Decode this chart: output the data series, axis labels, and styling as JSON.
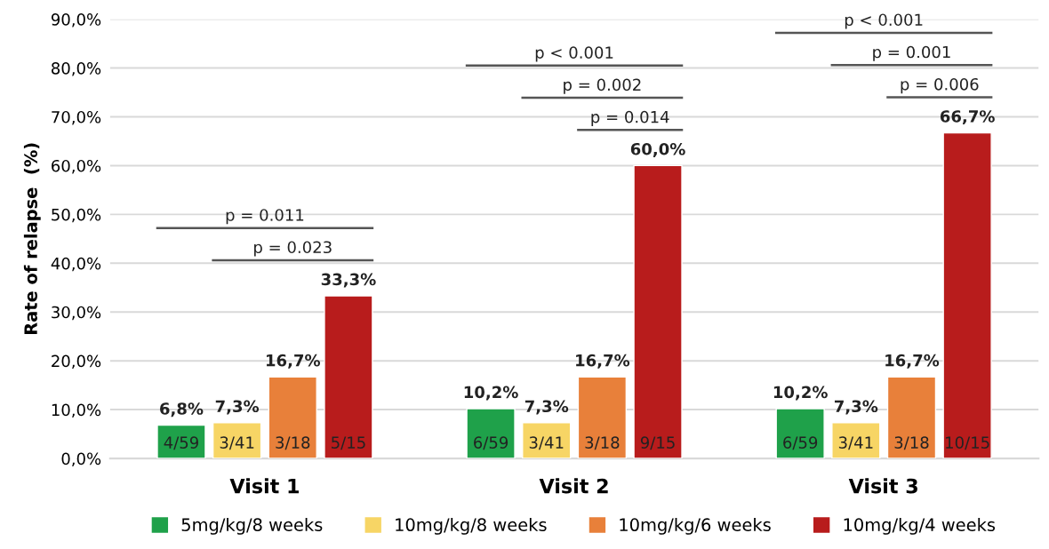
{
  "chart_data": {
    "type": "bar",
    "ylabel": "Rate of relapse  (%)",
    "categories": [
      "Visit 1",
      "Visit 2",
      "Visit 3"
    ],
    "series": [
      {
        "name": "5mg/kg/8 weeks",
        "color": "#1fa14a",
        "values": [
          6.8,
          10.2,
          10.2
        ],
        "value_labels": [
          "6,8%",
          "10,2%",
          "10,2%"
        ]
      },
      {
        "name": "10mg/kg/8 weeks",
        "color": "#f7d565",
        "values": [
          7.3,
          7.3,
          7.3
        ],
        "value_labels": [
          "7,3%",
          "7,3%",
          "7,3%"
        ]
      },
      {
        "name": "10mg/kg/6 weeks",
        "color": "#e8803a",
        "values": [
          16.7,
          16.7,
          16.7
        ],
        "value_labels": [
          "16,7%",
          "16,7%",
          "16,7%"
        ]
      },
      {
        "name": "10mg/kg/4 weeks",
        "color": "#b81c1c",
        "values": [
          33.3,
          60.0,
          66.7
        ],
        "value_labels": [
          "33,3%",
          "60,0%",
          "66,7%"
        ]
      }
    ],
    "ylim": [
      0,
      90
    ],
    "yticks": [
      {
        "value": 0,
        "label": "0,0%"
      },
      {
        "value": 10,
        "label": "10,0%"
      },
      {
        "value": 20,
        "label": "20,0%"
      },
      {
        "value": 30,
        "label": "30,0%"
      },
      {
        "value": 40,
        "label": "40,0%"
      },
      {
        "value": 50,
        "label": "50,0%"
      },
      {
        "value": 60,
        "label": "60,0%"
      },
      {
        "value": 70,
        "label": "70,0%"
      },
      {
        "value": 80,
        "label": "80,0%"
      },
      {
        "value": 90,
        "label": "90,0%"
      }
    ],
    "grid": "y",
    "legend": "bottom",
    "annotations": [
      "4/59",
      "3/41",
      "3/18",
      "5/15",
      "6/59",
      "3/41",
      "3/18",
      "9/15",
      "6/59",
      "3/41",
      "3/18",
      "10/15",
      "p = 0.011",
      "p = 0.023",
      "p < 0.001",
      "p = 0.002",
      "p = 0.014",
      "p < 0.001",
      "p = 0.001",
      "p = 0.006"
    ]
  }
}
